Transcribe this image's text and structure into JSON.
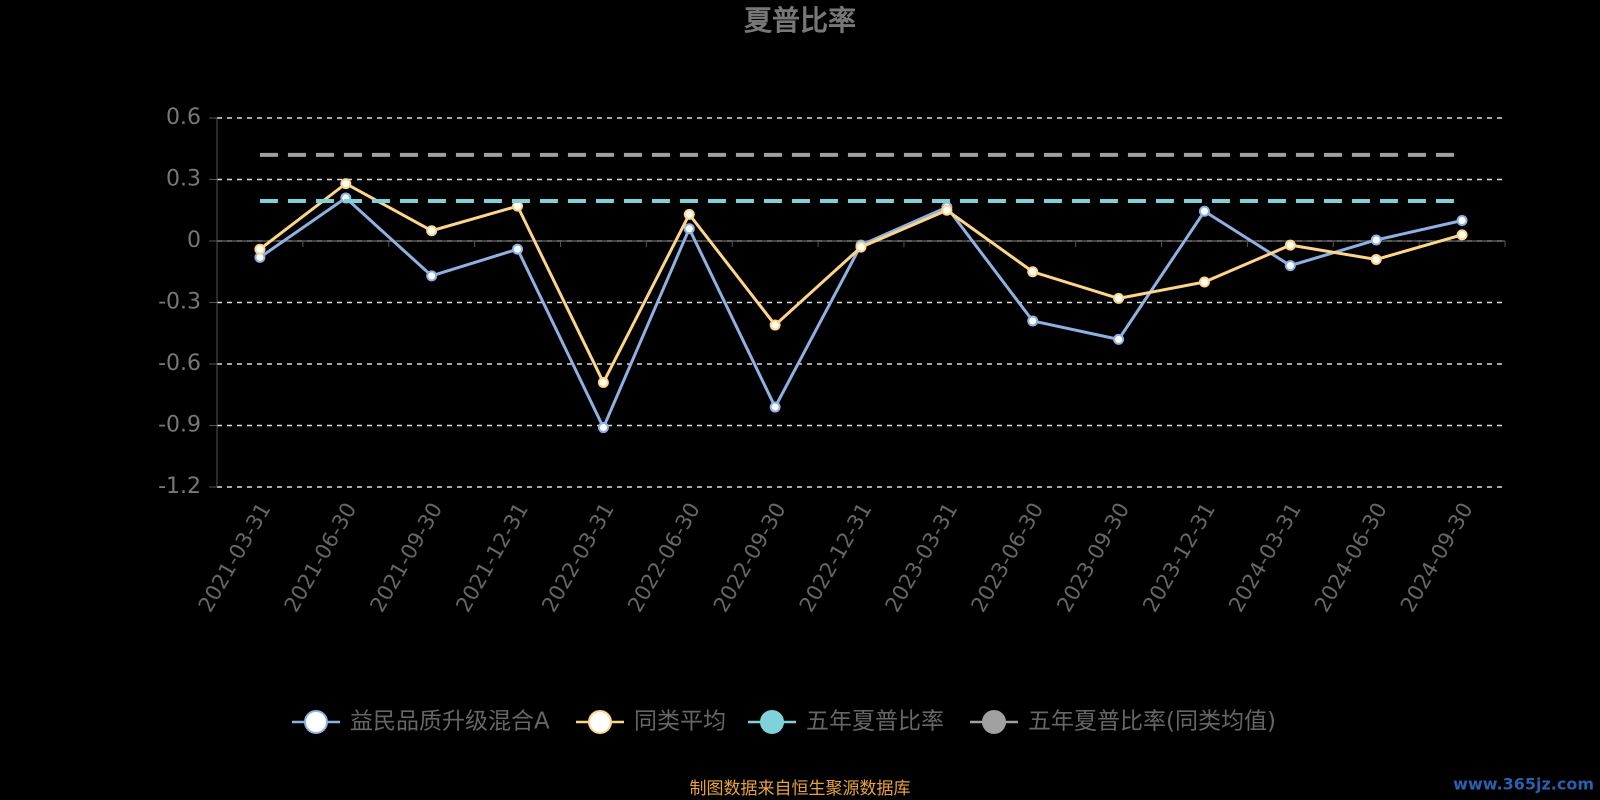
{
  "chart_data": {
    "type": "line",
    "title": "夏普比率",
    "categories": [
      "2021-03-31",
      "2021-06-30",
      "2021-09-30",
      "2021-12-31",
      "2022-03-31",
      "2022-06-30",
      "2022-09-30",
      "2022-12-31",
      "2023-03-31",
      "2023-06-30",
      "2023-09-30",
      "2023-12-31",
      "2024-03-31",
      "2024-06-30",
      "2024-09-30"
    ],
    "series": [
      {
        "name": "益民品质升级混合A",
        "color": "#8eb1e2",
        "values": [
          -0.08,
          0.21,
          -0.17,
          -0.04,
          -0.91,
          0.06,
          -0.81,
          -0.02,
          0.165,
          -0.39,
          -0.48,
          0.145,
          -0.12,
          0.005,
          0.1
        ]
      },
      {
        "name": "同类平均",
        "color": "#fdd58a",
        "values": [
          -0.04,
          0.28,
          0.05,
          0.17,
          -0.69,
          0.13,
          -0.41,
          -0.03,
          0.15,
          -0.15,
          -0.28,
          -0.2,
          -0.02,
          -0.09,
          0.03
        ]
      },
      {
        "name": "五年夏普比率",
        "color": "#7fd3d8",
        "dashed": true,
        "values": [
          0.195,
          0.195,
          0.195,
          0.195,
          0.195,
          0.195,
          0.195,
          0.195,
          0.195,
          0.195,
          0.195,
          0.195,
          0.195,
          0.195,
          0.195
        ]
      },
      {
        "name": "五年夏普比率(同类均值)",
        "color": "#a0a0a0",
        "dashed": true,
        "values": [
          0.42,
          0.42,
          0.42,
          0.42,
          0.42,
          0.42,
          0.42,
          0.42,
          0.42,
          0.42,
          0.42,
          0.42,
          0.42,
          0.42,
          0.42
        ]
      }
    ],
    "ylim": [
      -1.2,
      0.6
    ],
    "yticks": [
      -1.2,
      -0.9,
      -0.6,
      -0.3,
      0,
      0.3,
      0.6
    ],
    "grid": true,
    "legend": "bottom",
    "source": "制图数据来自恒生聚源数据库",
    "watermark": "www.365jz.com"
  }
}
